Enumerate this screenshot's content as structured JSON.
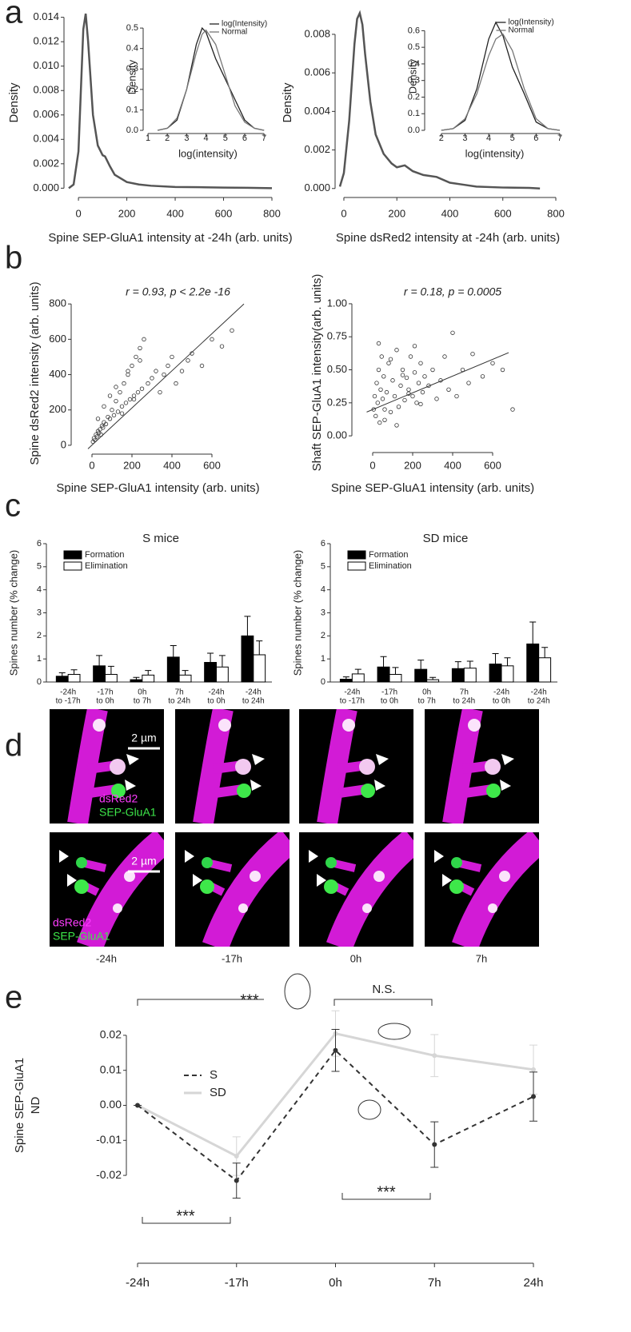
{
  "panel_labels": [
    "a",
    "b",
    "c",
    "d",
    "e"
  ],
  "images": {
    "scale_bar": [
      "2 µm",
      "2 µm"
    ],
    "channels": [
      [
        "dsRed2",
        "SEP-GluA1"
      ],
      [
        "dsRed2",
        "SEP-GluA1"
      ]
    ],
    "times": [
      "-24h",
      "-17h",
      "0h",
      "7h"
    ]
  },
  "chart_data": [
    {
      "type": "line",
      "x_label": "Spine SEP-GluA1 intensity at -24h (arb. units)",
      "y_label": "Density",
      "x": [
        -40,
        -20,
        0,
        10,
        20,
        30,
        40,
        50,
        60,
        80,
        100,
        110,
        130,
        150,
        200,
        250,
        300,
        400,
        500,
        600,
        700,
        800
      ],
      "series": [
        {
          "color": "#555555",
          "values": [
            0,
            0.0003,
            0.003,
            0.008,
            0.013,
            0.0143,
            0.012,
            0.009,
            0.006,
            0.0035,
            0.0027,
            0.0026,
            0.0018,
            0.0011,
            0.0005,
            0.0003,
            0.0002,
            0.0001,
            8e-05,
            5e-05,
            3e-05,
            0
          ]
        }
      ],
      "xlim": [
        -40,
        800
      ],
      "ylim": [
        -0.0005,
        0.0145
      ],
      "xticks": [
        0,
        200,
        400,
        600,
        800
      ],
      "yticks": [
        {
          "value": 0,
          "label": "0.000"
        },
        {
          "value": 0.002,
          "label": "0.002"
        },
        {
          "value": 0.004,
          "label": "0.004"
        },
        {
          "value": 0.006,
          "label": "0.006"
        },
        {
          "value": 0.008,
          "label": "0.008"
        },
        {
          "value": 0.01,
          "label": "0.010"
        },
        {
          "value": 0.012,
          "label": "0.012"
        },
        {
          "value": 0.014,
          "label": "0.014"
        }
      ]
    },
    {
      "type": "line",
      "x_label": "log(intensity)",
      "y_label": "Density",
      "legend": "top-right",
      "x": [
        1.5,
        2,
        2.5,
        3,
        3.5,
        3.8,
        4,
        4.5,
        5,
        5.5,
        6,
        6.5,
        7
      ],
      "series": [
        {
          "name": "log(Intensity)",
          "color": "#222222",
          "values": [
            0,
            0.01,
            0.05,
            0.2,
            0.42,
            0.5,
            0.48,
            0.35,
            0.25,
            0.15,
            0.05,
            0.01,
            0
          ]
        },
        {
          "name": "Normal",
          "color": "#777777",
          "values": [
            0,
            0.01,
            0.06,
            0.2,
            0.38,
            0.47,
            0.49,
            0.42,
            0.27,
            0.12,
            0.04,
            0.01,
            0
          ]
        }
      ],
      "xlim": [
        1,
        7.2
      ],
      "ylim": [
        0,
        0.52
      ],
      "xticks": [
        1,
        2,
        3,
        4,
        5,
        6,
        7
      ],
      "yticks": [
        {
          "value": 0,
          "label": "0.0"
        },
        0.1,
        0.2,
        0.3,
        0.4,
        0.5
      ]
    },
    {
      "type": "line",
      "x_label": "Spine dsRed2 intensity at -24h (arb. units)",
      "y_label": "Density",
      "x": [
        -15,
        0,
        20,
        40,
        50,
        60,
        70,
        80,
        100,
        120,
        150,
        180,
        200,
        230,
        260,
        300,
        350,
        400,
        450,
        500,
        600,
        700,
        740
      ],
      "series": [
        {
          "color": "#555555",
          "values": [
            0.0001,
            0.0008,
            0.0035,
            0.0075,
            0.0088,
            0.0091,
            0.0085,
            0.007,
            0.0045,
            0.0028,
            0.0018,
            0.0013,
            0.0011,
            0.0012,
            0.0009,
            0.0007,
            0.0006,
            0.0003,
            0.0002,
            0.0001,
            5e-05,
            3e-05,
            0
          ]
        }
      ],
      "xlim": [
        -15,
        800
      ],
      "ylim": [
        -0.0003,
        0.0092
      ],
      "xticks": [
        0,
        200,
        400,
        600,
        800
      ],
      "yticks": [
        {
          "value": 0,
          "label": "0.000"
        },
        {
          "value": 0.002,
          "label": "0.002"
        },
        {
          "value": 0.004,
          "label": "0.004"
        },
        {
          "value": 0.006,
          "label": "0.006"
        },
        {
          "value": 0.008,
          "label": "0.008"
        }
      ]
    },
    {
      "type": "line",
      "x_label": "log(intensity)",
      "y_label": "Density",
      "legend": "top-right",
      "x": [
        2,
        2.5,
        3,
        3.5,
        4,
        4.3,
        4.6,
        5,
        5.5,
        6,
        6.5,
        7
      ],
      "series": [
        {
          "name": "log(Intensity)",
          "color": "#222222",
          "values": [
            0,
            0.01,
            0.06,
            0.25,
            0.55,
            0.65,
            0.57,
            0.38,
            0.22,
            0.05,
            0.01,
            0
          ]
        },
        {
          "name": "Normal",
          "color": "#777777",
          "values": [
            0,
            0.01,
            0.07,
            0.22,
            0.45,
            0.55,
            0.58,
            0.48,
            0.25,
            0.07,
            0.01,
            0
          ]
        }
      ],
      "xlim": [
        1.5,
        7
      ],
      "ylim": [
        0,
        0.65
      ],
      "xticks": [
        2,
        3,
        4,
        5,
        6,
        7
      ],
      "yticks": [
        {
          "value": 0,
          "label": "0.0"
        },
        0.1,
        0.2,
        0.3,
        0.4,
        0.5,
        0.6
      ]
    },
    {
      "type": "scatter",
      "annotation": "r = 0.93, p < 2.2e -16",
      "x_label": "Spine SEP-GluA1 intensity (arb. units)",
      "y_label": "Spine dsRed2 intensity (arb. units)",
      "x": [
        5,
        10,
        15,
        20,
        25,
        30,
        35,
        40,
        45,
        50,
        55,
        60,
        70,
        80,
        90,
        100,
        110,
        120,
        130,
        140,
        150,
        160,
        170,
        180,
        190,
        200,
        210,
        220,
        230,
        240,
        250,
        260,
        280,
        300,
        320,
        340,
        360,
        380,
        400,
        420,
        450,
        480,
        500,
        550,
        600,
        650,
        700,
        30,
        60,
        90,
        120,
        150,
        180,
        210,
        240
      ],
      "values": [
        20,
        40,
        30,
        60,
        50,
        80,
        70,
        90,
        60,
        110,
        100,
        130,
        120,
        160,
        150,
        200,
        170,
        250,
        190,
        300,
        220,
        350,
        240,
        400,
        260,
        450,
        280,
        500,
        300,
        550,
        320,
        600,
        350,
        380,
        420,
        300,
        400,
        450,
        500,
        350,
        420,
        480,
        520,
        450,
        600,
        560,
        650,
        150,
        220,
        280,
        330,
        180,
        420,
        260,
        480
      ],
      "trend": {
        "x": [
          -20,
          760
        ],
        "y": [
          -20,
          800
        ]
      },
      "xlim": [
        -80,
        740
      ],
      "ylim": [
        -23,
        837
      ],
      "xticks": [
        0,
        200,
        400,
        600
      ],
      "yticks": [
        0,
        200,
        400,
        600,
        800
      ]
    },
    {
      "type": "scatter",
      "annotation": "r = 0.18, p = 0.0005",
      "x_label": "Spine SEP-GluA1 intensity (arb. units)",
      "y_label": "Shaft SEP-GluA1 intensity(arb. units)",
      "x": [
        5,
        10,
        15,
        20,
        25,
        30,
        35,
        40,
        45,
        50,
        55,
        60,
        70,
        80,
        90,
        100,
        110,
        120,
        130,
        140,
        150,
        160,
        170,
        180,
        190,
        200,
        210,
        220,
        230,
        240,
        250,
        260,
        280,
        300,
        320,
        340,
        360,
        380,
        400,
        420,
        450,
        480,
        500,
        550,
        600,
        650,
        700,
        30,
        60,
        90,
        120,
        150,
        180,
        210,
        240
      ],
      "values": [
        0.2,
        0.3,
        0.15,
        0.4,
        0.25,
        0.5,
        0.1,
        0.35,
        0.6,
        0.28,
        0.45,
        0.2,
        0.33,
        0.55,
        0.18,
        0.42,
        0.3,
        0.65,
        0.22,
        0.38,
        0.5,
        0.27,
        0.44,
        0.35,
        0.6,
        0.3,
        0.48,
        0.25,
        0.4,
        0.55,
        0.33,
        0.45,
        0.38,
        0.5,
        0.28,
        0.42,
        0.6,
        0.35,
        0.78,
        0.3,
        0.5,
        0.4,
        0.62,
        0.45,
        0.55,
        0.5,
        0.2,
        0.7,
        0.12,
        0.58,
        0.08,
        0.46,
        0.32,
        0.68,
        0.24
      ],
      "trend": {
        "x": [
          -30,
          680
        ],
        "y": [
          0.18,
          0.63
        ]
      },
      "xlim": [
        -80,
        680
      ],
      "ylim": [
        -0.09,
        1.048
      ],
      "xticks": [
        0,
        200,
        400,
        600
      ],
      "yticks": [
        {
          "value": 0,
          "label": "0.00"
        },
        0.25,
        {
          "value": 0.5,
          "label": "0.50"
        },
        0.75,
        {
          "value": 1,
          "label": "1.00"
        }
      ]
    },
    {
      "type": "bar",
      "title": "S mice",
      "y_label": "Spines number (% change)",
      "categories": [
        [
          "-24h",
          "to -17h"
        ],
        [
          "-17h",
          "to 0h"
        ],
        [
          "0h",
          "to 7h"
        ],
        [
          "7h",
          "to 24h"
        ],
        [
          "-24h",
          "to 0h"
        ],
        [
          "-24h",
          "to 24h"
        ]
      ],
      "series": [
        {
          "name": "Formation",
          "color": "#000000",
          "values": [
            0.25,
            0.7,
            0.1,
            1.08,
            0.85,
            2.0
          ],
          "errors": [
            0.15,
            0.45,
            0.1,
            0.5,
            0.4,
            0.85
          ]
        },
        {
          "name": "Elimination",
          "color": "#ffffff",
          "values": [
            0.33,
            0.33,
            0.3,
            0.3,
            0.65,
            1.18
          ],
          "errors": [
            0.2,
            0.35,
            0.2,
            0.2,
            0.5,
            0.6
          ]
        }
      ],
      "ylim": [
        0,
        6
      ],
      "yticks": [
        0,
        1,
        2,
        3,
        4,
        5,
        6
      ]
    },
    {
      "type": "bar",
      "title": "SD mice",
      "y_label": "Spines number (% change)",
      "categories": [
        [
          "-24h",
          "to -17h"
        ],
        [
          "-17h",
          "to 0h"
        ],
        [
          "0h",
          "to 7h"
        ],
        [
          "7h",
          "to 24h"
        ],
        [
          "-24h",
          "to 0h"
        ],
        [
          "-24h",
          "to 24h"
        ]
      ],
      "series": [
        {
          "name": "Formation",
          "color": "#000000",
          "values": [
            0.12,
            0.65,
            0.55,
            0.58,
            0.78,
            1.65
          ],
          "errors": [
            0.1,
            0.45,
            0.4,
            0.3,
            0.45,
            0.95
          ]
        },
        {
          "name": "Elimination",
          "color": "#ffffff",
          "values": [
            0.35,
            0.33,
            0.1,
            0.6,
            0.7,
            1.05
          ],
          "errors": [
            0.2,
            0.3,
            0.1,
            0.3,
            0.35,
            0.45
          ]
        }
      ],
      "ylim": [
        0,
        6
      ],
      "yticks": [
        0,
        1,
        2,
        3,
        4,
        5,
        6
      ]
    },
    {
      "type": "line",
      "y_label": [
        "Spine SEP-GluA1",
        "ND"
      ],
      "annotations": [
        "***",
        "N.S.",
        "***",
        "***"
      ],
      "categories": [
        "-24h",
        "-17h",
        "0h",
        "7h",
        "24h"
      ],
      "series": [
        {
          "name": "S",
          "color": "#333333",
          "dash": true,
          "values": [
            0,
            -0.0215,
            0.0157,
            -0.0112,
            0.0025
          ],
          "errors": [
            0,
            0.005,
            0.006,
            0.0065,
            0.007
          ]
        },
        {
          "name": "SD",
          "color": "#d6d6d6",
          "dash": false,
          "values": [
            0,
            -0.0145,
            0.0205,
            0.0142,
            0.0102
          ],
          "errors": [
            0,
            0.0055,
            0.0065,
            0.006,
            0.007
          ]
        }
      ],
      "ylim": [
        -0.025,
        0.025
      ],
      "yticks": [
        0.02,
        0.01,
        {
          "value": 0,
          "label": "0.00"
        },
        -0.01,
        -0.02
      ]
    }
  ]
}
